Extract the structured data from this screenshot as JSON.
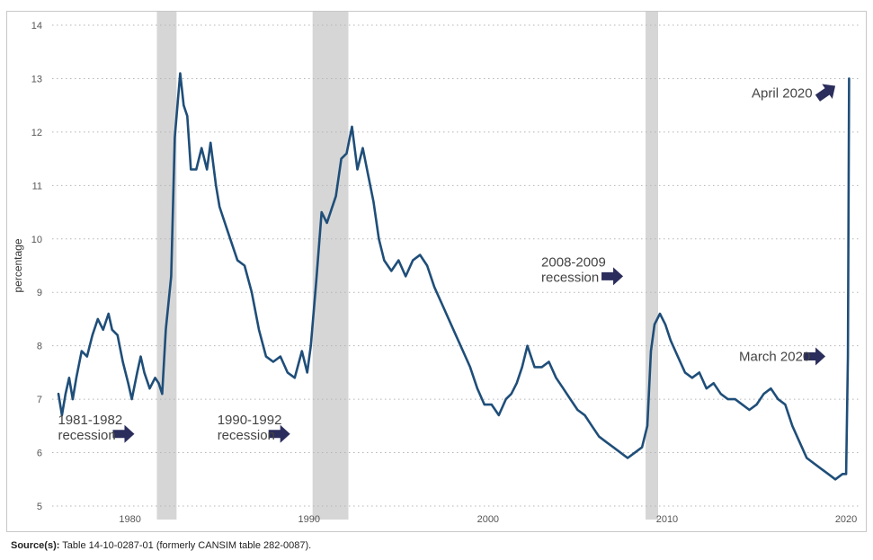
{
  "source": {
    "label": "Source(s):",
    "text": "Table 14-10-0287-01 (formerly CANSIM table 282-0087)."
  },
  "chart_data": {
    "type": "line",
    "ylabel": "percentage",
    "ylim": [
      5,
      14
    ],
    "xlim": [
      1975.5,
      2020.7
    ],
    "yticks": [
      "5",
      "6",
      "7",
      "8",
      "9",
      "10",
      "11",
      "12",
      "13",
      "14"
    ],
    "xticks": [
      "1980",
      "1990",
      "2000",
      "2010",
      "2020"
    ],
    "grid": "horizontal dotted",
    "colors": {
      "line": "#1f4e79",
      "recession": "#d6d6d6",
      "arrow": "#2b2d5c"
    },
    "recessions": [
      {
        "start": 1981.5,
        "end": 1982.6
      },
      {
        "start": 1990.2,
        "end": 1992.2
      },
      {
        "start": 2008.8,
        "end": 2009.5
      }
    ],
    "series": [
      {
        "x": [
          1976.0,
          1976.2,
          1976.4,
          1976.6,
          1976.8,
          1977.0,
          1977.3,
          1977.6,
          1977.9,
          1978.2,
          1978.5,
          1978.8,
          1979.0,
          1979.3,
          1979.6,
          1979.9,
          1980.1,
          1980.4,
          1980.6,
          1980.8,
          1981.1,
          1981.4,
          1981.6,
          1981.8,
          1982.0,
          1982.3,
          1982.5,
          1982.8,
          1983.0,
          1983.2,
          1983.4,
          1983.7,
          1984.0,
          1984.3,
          1984.5,
          1984.8,
          1985.0,
          1985.3,
          1985.6,
          1986.0,
          1986.4,
          1986.8,
          1987.2,
          1987.6,
          1988.0,
          1988.4,
          1988.8,
          1989.2,
          1989.6,
          1989.9,
          1990.1,
          1990.4,
          1990.7,
          1991.0,
          1991.2,
          1991.5,
          1991.8,
          1992.1,
          1992.4,
          1992.7,
          1993.0,
          1993.3,
          1993.6,
          1993.9,
          1994.2,
          1994.6,
          1995.0,
          1995.4,
          1995.8,
          1996.2,
          1996.6,
          1997.0,
          1997.4,
          1997.8,
          1998.2,
          1998.6,
          1999.0,
          1999.4,
          1999.8,
          2000.2,
          2000.6,
          2001.0,
          2001.3,
          2001.6,
          2001.9,
          2002.2,
          2002.6,
          2003.0,
          2003.4,
          2003.8,
          2004.2,
          2004.6,
          2005.0,
          2005.4,
          2005.8,
          2006.2,
          2006.6,
          2007.0,
          2007.4,
          2007.8,
          2008.2,
          2008.6,
          2008.9,
          2009.1,
          2009.3,
          2009.6,
          2009.9,
          2010.2,
          2010.6,
          2011.0,
          2011.4,
          2011.8,
          2012.2,
          2012.6,
          2013.0,
          2013.4,
          2013.8,
          2014.2,
          2014.6,
          2015.0,
          2015.4,
          2015.8,
          2016.2,
          2016.6,
          2017.0,
          2017.4,
          2017.8,
          2018.2,
          2018.6,
          2019.0,
          2019.4,
          2019.8,
          2020.0,
          2020.1,
          2020.17
        ],
        "values": [
          7.1,
          6.7,
          7.1,
          7.4,
          7.0,
          7.4,
          7.9,
          7.8,
          8.2,
          8.5,
          8.3,
          8.6,
          8.3,
          8.2,
          7.7,
          7.3,
          7.0,
          7.5,
          7.8,
          7.5,
          7.2,
          7.4,
          7.3,
          7.1,
          8.3,
          9.3,
          11.9,
          13.1,
          12.5,
          12.3,
          11.3,
          11.3,
          11.7,
          11.3,
          11.8,
          11.0,
          10.6,
          10.3,
          10.0,
          9.6,
          9.5,
          9.0,
          8.3,
          7.8,
          7.7,
          7.8,
          7.5,
          7.4,
          7.9,
          7.5,
          8.0,
          9.2,
          10.5,
          10.3,
          10.5,
          10.8,
          11.5,
          11.6,
          12.1,
          11.3,
          11.7,
          11.2,
          10.7,
          10.0,
          9.6,
          9.4,
          9.6,
          9.3,
          9.6,
          9.7,
          9.5,
          9.1,
          8.8,
          8.5,
          8.2,
          7.9,
          7.6,
          7.2,
          6.9,
          6.9,
          6.7,
          7.0,
          7.1,
          7.3,
          7.6,
          8.0,
          7.6,
          7.6,
          7.7,
          7.4,
          7.2,
          7.0,
          6.8,
          6.7,
          6.5,
          6.3,
          6.2,
          6.1,
          6.0,
          5.9,
          6.0,
          6.1,
          6.5,
          7.9,
          8.4,
          8.6,
          8.4,
          8.1,
          7.8,
          7.5,
          7.4,
          7.5,
          7.2,
          7.3,
          7.1,
          7.0,
          7.0,
          6.9,
          6.8,
          6.9,
          7.1,
          7.2,
          7.0,
          6.9,
          6.5,
          6.2,
          5.9,
          5.8,
          5.7,
          5.6,
          5.5,
          5.6,
          5.6,
          7.8,
          13.0
        ]
      }
    ],
    "annotations": [
      {
        "id": "a1981",
        "lines": [
          "1981-1982",
          "recession"
        ],
        "x": 1981.5,
        "y": 6.35,
        "dir": "right"
      },
      {
        "id": "a1990",
        "lines": [
          "1990-1992",
          "recession"
        ],
        "x": 1990.2,
        "y": 6.35,
        "dir": "right"
      },
      {
        "id": "a2008",
        "lines": [
          "2008-2009",
          "recession"
        ],
        "x": 2008.8,
        "y": 9.3,
        "dir": "right"
      },
      {
        "id": "amar",
        "lines": [
          "March 2020"
        ],
        "x": 2020.0,
        "y": 7.8,
        "dir": "right"
      },
      {
        "id": "aapr",
        "lines": [
          "April 2020"
        ],
        "x": 2020.0,
        "y": 13.0,
        "dir": "up-right"
      }
    ]
  }
}
